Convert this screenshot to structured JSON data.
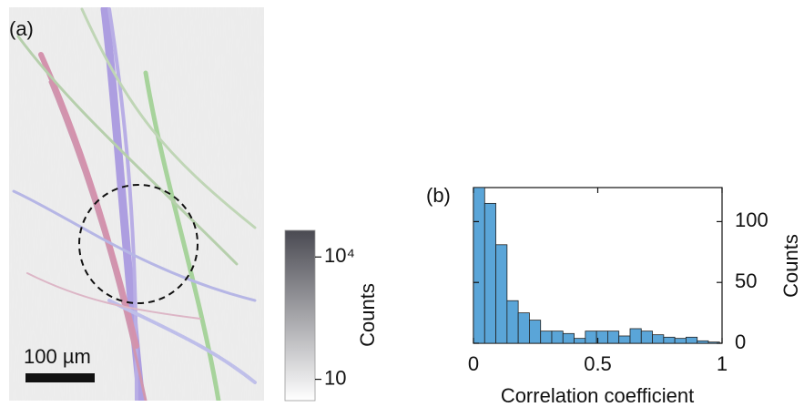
{
  "chart_data": [
    {
      "type": "image",
      "panel_label": "(a)",
      "scale_bar": "100 µm",
      "colorbar": {
        "label": "Counts",
        "log": true,
        "lim": [
          3,
          45000
        ],
        "ticks": [
          10,
          {
            "value": 10000,
            "label": "10⁴"
          }
        ],
        "colors": [
          "#ffffff",
          "#4a4a52"
        ]
      }
    },
    {
      "type": "histogram",
      "panel_label": "(b)",
      "xlabel": "Correlation coefficient",
      "ylabel": "Counts",
      "color": "#5aa5d8",
      "xlim": [
        0,
        1
      ],
      "xticks": [
        0,
        0.5,
        1
      ],
      "ylim": [
        0,
        128
      ],
      "yticks": [
        0,
        50,
        100
      ],
      "bins": [
        0,
        0.045,
        0.09,
        0.135,
        0.18,
        0.225,
        0.27,
        0.315,
        0.36,
        0.405,
        0.45,
        0.495,
        0.54,
        0.585,
        0.63,
        0.675,
        0.72,
        0.765,
        0.81,
        0.855,
        0.9,
        0.945,
        0.99
      ],
      "values": [
        128,
        115,
        81,
        35,
        25,
        19,
        10,
        10,
        8,
        4,
        10,
        10,
        10,
        6,
        12,
        10,
        7,
        5,
        4,
        5,
        2,
        1,
        0
      ]
    }
  ]
}
